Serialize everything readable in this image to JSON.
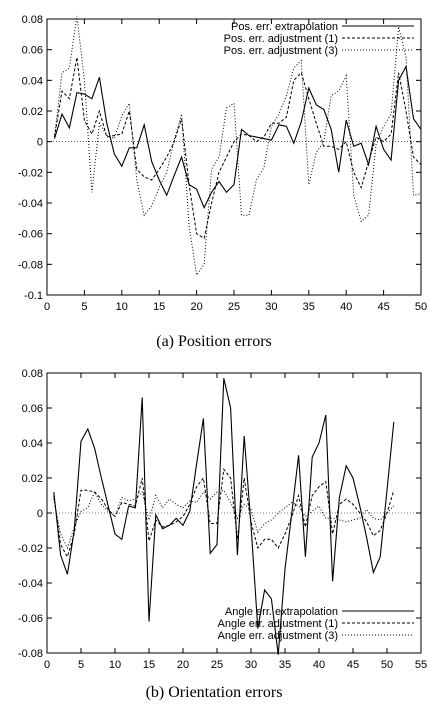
{
  "chart_data": [
    {
      "type": "line",
      "title": "",
      "caption": "(a) Position errors",
      "xlabel": "",
      "ylabel": "",
      "xlim": [
        0,
        50
      ],
      "ylim": [
        -0.1,
        0.08
      ],
      "xticks": [
        0,
        5,
        10,
        15,
        20,
        25,
        30,
        35,
        40,
        45,
        50
      ],
      "yticks": [
        -0.1,
        -0.08,
        -0.06,
        -0.04,
        -0.02,
        0,
        0.02,
        0.04,
        0.06,
        0.08
      ],
      "ytick_labels": [
        "-0.1",
        "-0.08",
        "-0.06",
        "-0.04",
        "-0.02",
        "0",
        "0.02",
        "0.04",
        "0.06",
        "0.08"
      ],
      "zero_line": true,
      "grid": false,
      "legend_position": "top-right",
      "x": [
        1,
        2,
        3,
        4,
        5,
        6,
        7,
        8,
        9,
        10,
        11,
        12,
        13,
        14,
        15,
        16,
        17,
        18,
        19,
        20,
        21,
        22,
        23,
        24,
        25,
        26,
        27,
        28,
        29,
        30,
        31,
        32,
        33,
        34,
        35,
        36,
        37,
        38,
        39,
        40,
        41,
        42,
        43,
        44,
        45,
        46,
        47,
        48,
        49,
        50
      ],
      "series": [
        {
          "name": "Pos. err. extrapolation",
          "style": "solid",
          "values": [
            0.002,
            0.018,
            0.009,
            0.032,
            0.031,
            0.028,
            0.042,
            0.012,
            -0.008,
            -0.016,
            -0.004,
            -0.004,
            0.011,
            -0.013,
            -0.025,
            -0.035,
            -0.022,
            -0.01,
            -0.028,
            -0.031,
            -0.043,
            -0.033,
            -0.026,
            -0.033,
            -0.028,
            0.008,
            0.004,
            0.003,
            0.002,
            0.001,
            0.011,
            0.01,
            -0.001,
            0.013,
            0.035,
            0.024,
            0.021,
            0.008,
            -0.02,
            0.014,
            -0.003,
            -0.001,
            -0.015,
            0.01,
            -0.005,
            -0.012,
            0.04,
            0.049,
            0.015,
            0.008
          ]
        },
        {
          "name": "Pos. err. adjustment (1)",
          "style": "dashed",
          "values": [
            0.003,
            0.033,
            0.028,
            0.055,
            0.014,
            0.005,
            0.02,
            0.003,
            0.004,
            0.005,
            0.02,
            -0.018,
            -0.023,
            -0.025,
            -0.018,
            -0.01,
            0.0,
            0.015,
            -0.028,
            -0.06,
            -0.063,
            -0.04,
            -0.02,
            -0.01,
            0.0,
            0.005,
            0.004,
            0.0,
            0.003,
            0.012,
            0.012,
            0.016,
            0.04,
            0.045,
            0.028,
            0.012,
            -0.003,
            -0.003,
            -0.005,
            0.0,
            -0.02,
            -0.03,
            -0.013,
            0.003,
            0.0,
            0.005,
            0.045,
            0.02,
            -0.01,
            -0.015
          ]
        },
        {
          "name": "Pos. err. adjustment (3)",
          "style": "dotted",
          "values": [
            0.003,
            0.045,
            0.048,
            0.082,
            0.04,
            -0.033,
            0.012,
            0.004,
            0.002,
            0.017,
            0.025,
            -0.025,
            -0.048,
            -0.042,
            -0.03,
            -0.02,
            0.001,
            0.018,
            -0.055,
            -0.087,
            -0.08,
            -0.018,
            -0.01,
            0.022,
            0.025,
            -0.048,
            -0.048,
            -0.025,
            -0.017,
            0.01,
            0.018,
            0.03,
            0.048,
            0.053,
            -0.028,
            -0.007,
            0.0,
            0.03,
            0.033,
            0.043,
            -0.035,
            -0.052,
            -0.048,
            -0.002,
            0.01,
            0.018,
            0.075,
            0.055,
            -0.035,
            -0.034
          ]
        }
      ]
    },
    {
      "type": "line",
      "title": "",
      "caption": "(b) Orientation errors",
      "xlabel": "",
      "ylabel": "",
      "xlim": [
        0,
        55
      ],
      "ylim": [
        -0.08,
        0.08
      ],
      "xticks": [
        0,
        5,
        10,
        15,
        20,
        25,
        30,
        35,
        40,
        45,
        50,
        55
      ],
      "yticks": [
        -0.08,
        -0.06,
        -0.04,
        -0.02,
        0,
        0.02,
        0.04,
        0.06,
        0.08
      ],
      "ytick_labels": [
        "-0.08",
        "-0.06",
        "-0.04",
        "-0.02",
        "0",
        "0.02",
        "0.04",
        "0.06",
        "0.08"
      ],
      "zero_line": true,
      "grid": false,
      "legend_position": "bottom-right",
      "x": [
        1,
        2,
        3,
        4,
        5,
        6,
        7,
        8,
        9,
        10,
        11,
        12,
        13,
        14,
        15,
        16,
        17,
        18,
        19,
        20,
        21,
        22,
        23,
        24,
        25,
        26,
        27,
        28,
        29,
        30,
        31,
        32,
        33,
        34,
        35,
        36,
        37,
        38,
        39,
        40,
        41,
        42,
        43,
        44,
        45,
        46,
        47,
        48,
        49,
        50,
        51
      ],
      "series": [
        {
          "name": "Angle err. extrapolation",
          "style": "solid",
          "values": [
            0.012,
            -0.024,
            -0.035,
            -0.01,
            0.041,
            0.048,
            0.037,
            0.02,
            0.004,
            -0.012,
            -0.015,
            0.004,
            0.003,
            0.066,
            -0.062,
            -0.001,
            -0.009,
            -0.007,
            -0.003,
            -0.007,
            0.001,
            0.028,
            0.054,
            -0.023,
            -0.018,
            0.077,
            0.06,
            -0.024,
            0.044,
            -0.007,
            -0.066,
            -0.044,
            -0.049,
            -0.081,
            -0.032,
            0.0,
            0.033,
            -0.025,
            0.032,
            0.04,
            0.056,
            -0.039,
            0.009,
            0.027,
            0.02,
            0.004,
            -0.014,
            -0.034,
            -0.025,
            0.013,
            0.052
          ]
        },
        {
          "name": "Angle err. adjustment (1)",
          "style": "dashed",
          "values": [
            0.01,
            -0.018,
            -0.025,
            -0.012,
            0.013,
            0.013,
            0.012,
            0.008,
            0.002,
            -0.002,
            0.006,
            0.005,
            0.004,
            0.02,
            -0.016,
            -0.004,
            -0.008,
            -0.007,
            -0.005,
            -0.002,
            0.005,
            0.015,
            0.02,
            -0.006,
            -0.006,
            0.025,
            0.02,
            -0.015,
            0.02,
            -0.005,
            -0.02,
            -0.015,
            -0.015,
            -0.02,
            -0.012,
            -0.002,
            0.01,
            -0.008,
            0.01,
            0.015,
            0.018,
            -0.012,
            0.005,
            0.008,
            0.005,
            0.0,
            -0.005,
            -0.013,
            -0.01,
            0.0,
            0.013
          ]
        },
        {
          "name": "Angle err. adjustment (3)",
          "style": "dotted",
          "values": [
            0.008,
            -0.012,
            -0.02,
            -0.008,
            0.001,
            0.003,
            0.012,
            0.005,
            0.001,
            -0.002,
            0.009,
            0.007,
            0.008,
            0.012,
            -0.004,
            0.01,
            0.003,
            0.008,
            0.005,
            0.003,
            0.007,
            0.006,
            0.012,
            0.008,
            0.012,
            0.013,
            0.006,
            -0.003,
            0.005,
            0.002,
            -0.011,
            -0.006,
            -0.004,
            0.0,
            0.003,
            0.006,
            0.004,
            -0.002,
            0.001,
            0.004,
            -0.003,
            -0.003,
            -0.004,
            -0.005,
            -0.004,
            -0.003,
            0.002,
            -0.003,
            -0.004,
            0.0,
            0.004
          ]
        }
      ]
    }
  ]
}
